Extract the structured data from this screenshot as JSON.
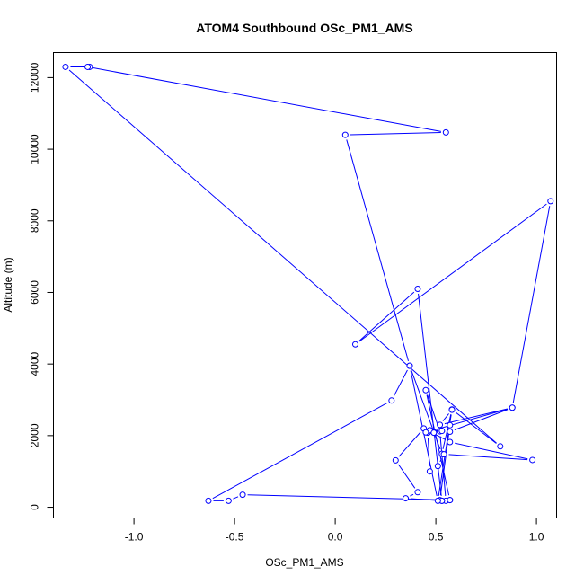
{
  "chart_data": {
    "type": "line",
    "title": "ATOM4 Southbound OSc_PM1_AMS",
    "xlabel": "OSc_PM1_AMS",
    "ylabel": "Altitude (m)",
    "xlim": [
      -1.4,
      1.1
    ],
    "ylim": [
      -300,
      12700
    ],
    "x_ticks": [
      -1.0,
      -0.5,
      0.0,
      0.5,
      1.0
    ],
    "x_tick_labels": [
      "-1.0",
      "-0.5",
      "0.0",
      "0.5",
      "1.0"
    ],
    "y_ticks": [
      0,
      2000,
      4000,
      6000,
      8000,
      10000,
      12000
    ],
    "y_tick_labels": [
      "0",
      "2000",
      "4000",
      "6000",
      "8000",
      "10000",
      "12000"
    ],
    "series": [
      {
        "name": "OSc_PM1_AMS",
        "color": "#0000ff",
        "x": [
          -1.22,
          -1.34,
          0.82,
          0.58,
          0.53,
          0.37,
          0.28,
          -0.63,
          -0.53,
          -0.46,
          0.57,
          0.45,
          0.52,
          0.55,
          0.53,
          0.35,
          0.41,
          0.3,
          0.44,
          0.57,
          0.98,
          0.54,
          0.51,
          0.47,
          0.46,
          0.47,
          0.57,
          0.88,
          0.45,
          0.49,
          0.53,
          0.57,
          0.52,
          0.57,
          0.53,
          0.41,
          0.1,
          1.07,
          0.88,
          0.52,
          0.58,
          0.51,
          0.37,
          0.05,
          0.55,
          -1.23
        ],
        "y": [
          12300,
          12300,
          1700,
          2730,
          1490,
          3950,
          2980,
          180,
          180,
          350,
          200,
          3270,
          2120,
          180,
          180,
          250,
          420,
          1310,
          2200,
          1820,
          1320,
          1480,
          1150,
          1000,
          2080,
          2150,
          2110,
          2780,
          2090,
          2080,
          2130,
          2290,
          200,
          200,
          180,
          6100,
          4550,
          8550,
          2780,
          2300,
          2720,
          180,
          3950,
          10400,
          10470,
          12300
        ]
      }
    ]
  }
}
